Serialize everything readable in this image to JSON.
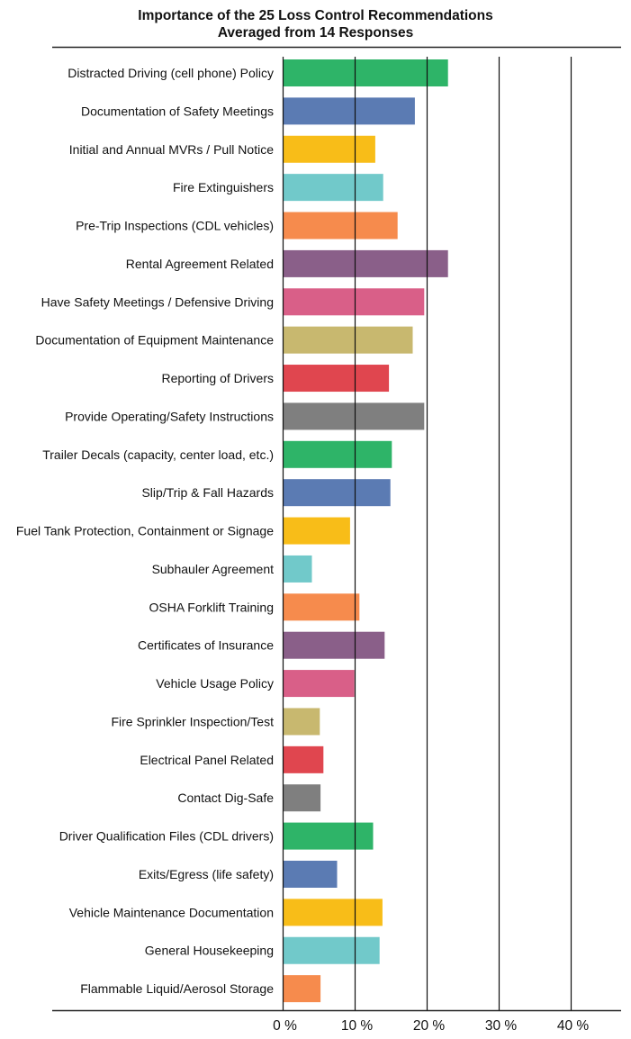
{
  "chart_data": {
    "type": "bar",
    "orientation": "horizontal",
    "title": "Importance of the 25 Loss Control Recommendations",
    "subtitle": "Averaged from 14 Responses",
    "xlabel": "",
    "ylabel": "",
    "xlim": [
      0,
      40
    ],
    "ticks": [
      0,
      10,
      20,
      30,
      40
    ],
    "tick_labels": [
      "0 %",
      "10 %",
      "20 %",
      "30 %",
      "40 %"
    ],
    "grid": true,
    "categories": [
      "Distracted Driving (cell phone) Policy",
      "Documentation of Safety Meetings",
      "Initial and Annual MVRs / Pull Notice",
      "Fire Extinguishers",
      "Pre-Trip Inspections (CDL vehicles)",
      "Rental Agreement Related",
      "Have Safety Meetings / Defensive Driving",
      "Documentation of Equipment Maintenance",
      "Reporting of Drivers",
      "Provide Operating/Safety Instructions",
      "Trailer Decals (capacity, center load, etc.)",
      "Slip/Trip & Fall Hazards",
      "Fuel Tank Protection, Containment or Signage",
      "Subhauler Agreement",
      "OSHA Forklift Training",
      "Certificates of Insurance",
      "Vehicle Usage Policy",
      "Fire Sprinkler Inspection/Test",
      "Electrical Panel Related",
      "Contact Dig-Safe",
      "Driver Qualification Files (CDL drivers)",
      "Exits/Egress (life safety)",
      "Vehicle Maintenance Documentation",
      "General Housekeeping",
      "Flammable Liquid/Aerosol Storage"
    ],
    "values": [
      22.9,
      18.3,
      12.8,
      13.9,
      15.9,
      22.9,
      19.6,
      18.0,
      14.7,
      19.6,
      15.1,
      14.9,
      9.3,
      4.0,
      10.6,
      14.1,
      9.9,
      5.1,
      5.6,
      5.2,
      12.5,
      7.5,
      13.8,
      13.4,
      5.2
    ],
    "colors": [
      "#2eb468",
      "#5b7bb3",
      "#f8bd18",
      "#71c9ca",
      "#f68b4d",
      "#8a5f89",
      "#d95f88",
      "#c8b86f",
      "#e0464f",
      "#7f7f7f"
    ]
  }
}
